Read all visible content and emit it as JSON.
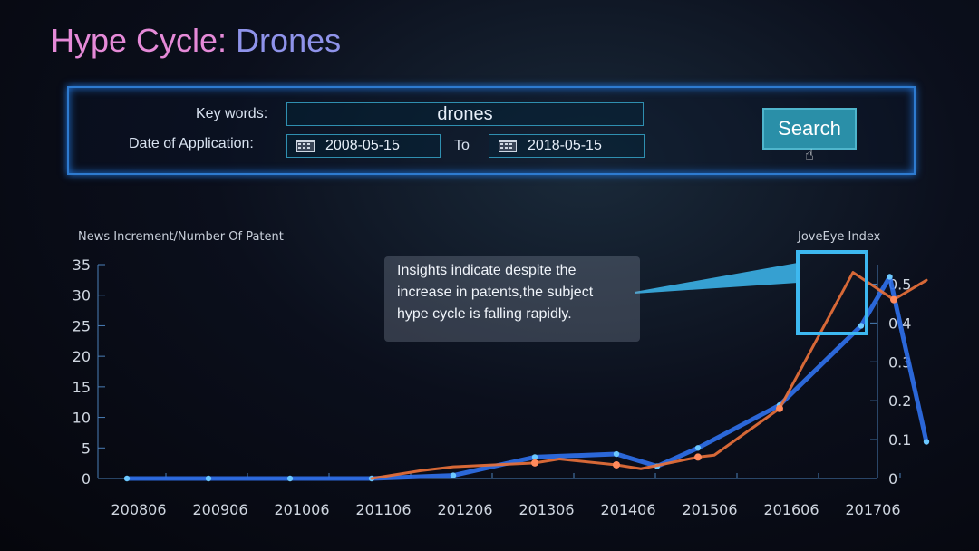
{
  "title": {
    "prefix": "Hype Cycle:",
    "subject": "Drones"
  },
  "search": {
    "keywords_label": "Key words",
    "keywords_value": "drones",
    "date_label": "Date of Application",
    "date_from": "2008-05-15",
    "to_label": "To",
    "date_to": "2018-05-15",
    "button_label": "Search"
  },
  "callout": {
    "text": "Insights indicate despite the increase in patents,the subject hype cycle is falling rapidly."
  },
  "colors": {
    "news_series": "#2f6fe8",
    "index_series": "#e8703a",
    "highlight": "#3db8f0"
  },
  "chart_data": {
    "type": "line",
    "left_axis_label": "News Increment/Number Of Patent",
    "right_axis_label": "JoveEye Index",
    "x_labels": [
      "200806",
      "200906",
      "201006",
      "201106",
      "201206",
      "201306",
      "201406",
      "201506",
      "201606",
      "201706"
    ],
    "left_ylim": [
      0,
      35
    ],
    "left_ticks": [
      0,
      5,
      10,
      15,
      20,
      25,
      30,
      35
    ],
    "right_ylim": [
      0,
      0.55
    ],
    "right_ticks": [
      0,
      0.1,
      0.2,
      0.3,
      0.4,
      0.5
    ],
    "series": [
      {
        "axis": "left",
        "x": [
          0,
          1,
          2,
          3,
          4,
          5,
          6,
          6.5,
          7,
          8,
          9,
          9.35,
          9.8
        ],
        "values": [
          0,
          0,
          0,
          0,
          0.5,
          3.5,
          4,
          2,
          5,
          12,
          25,
          33,
          6
        ],
        "markers": [
          0,
          1,
          2,
          3,
          4,
          5,
          6,
          7,
          8,
          9,
          10,
          11,
          12
        ]
      },
      {
        "axis": "right",
        "x": [
          3,
          3.6,
          4,
          4.5,
          5,
          5.3,
          6,
          6.3,
          7,
          7.2,
          8,
          8.9,
          9.4,
          9.8
        ],
        "values": [
          0,
          0.02,
          0.03,
          0.035,
          0.04,
          0.05,
          0.035,
          0.025,
          0.055,
          0.06,
          0.18,
          0.53,
          0.46,
          0.51
        ],
        "markers": [
          4,
          6,
          8,
          10,
          12
        ]
      }
    ]
  }
}
